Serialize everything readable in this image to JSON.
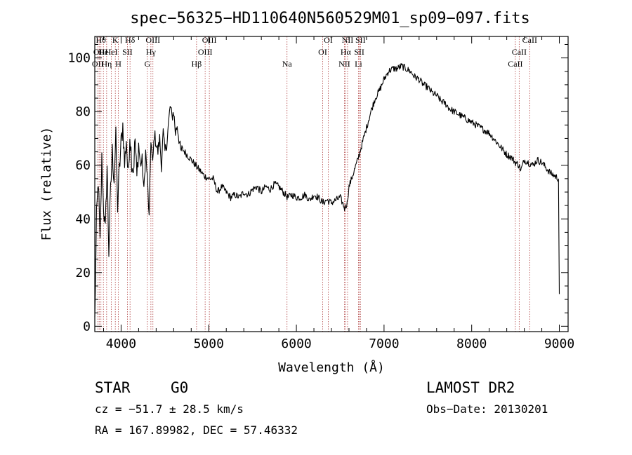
{
  "chart_data": {
    "type": "line",
    "title": "spec−56325−HD110640N560529M01_sp09−097.fits",
    "xlabel": "Wavelength (Å)",
    "ylabel": "Flux (relative)",
    "xlim": [
      3700,
      9100
    ],
    "ylim": [
      -2,
      108
    ],
    "xticks": [
      4000,
      5000,
      6000,
      7000,
      8000,
      9000
    ],
    "yticks": [
      0,
      20,
      40,
      60,
      80,
      100
    ],
    "x_minor_step": 200,
    "y_minor_step": 5,
    "grid": false,
    "line_color": "#000000",
    "marker_color": "#b04040",
    "series": [
      {
        "x": [
          3700,
          3720,
          3740,
          3760,
          3780,
          3800,
          3820,
          3840,
          3860,
          3880,
          3900,
          3920,
          3940,
          3960,
          3980,
          4000,
          4020,
          4040,
          4060,
          4080,
          4100,
          4120,
          4140,
          4160,
          4180,
          4200,
          4220,
          4240,
          4260,
          4280,
          4300,
          4320,
          4340,
          4360,
          4380,
          4400,
          4420,
          4440,
          4460,
          4480,
          4500,
          4520,
          4540,
          4560,
          4580,
          4600,
          4620,
          4640,
          4660,
          4680,
          4700,
          4750,
          4800,
          4850,
          4900,
          4950,
          5000,
          5050,
          5100,
          5150,
          5200,
          5250,
          5300,
          5350,
          5400,
          5450,
          5500,
          5550,
          5600,
          5650,
          5700,
          5750,
          5800,
          5850,
          5900,
          5950,
          6000,
          6050,
          6100,
          6150,
          6200,
          6250,
          6300,
          6350,
          6400,
          6450,
          6500,
          6550,
          6580,
          6600,
          6650,
          6700,
          6750,
          6800,
          6850,
          6900,
          6950,
          7000,
          7050,
          7100,
          7150,
          7200,
          7250,
          7300,
          7350,
          7400,
          7450,
          7500,
          7550,
          7600,
          7650,
          7700,
          7750,
          7800,
          7850,
          7900,
          7950,
          8000,
          8050,
          8100,
          8150,
          8200,
          8250,
          8300,
          8350,
          8400,
          8450,
          8500,
          8540,
          8560,
          8600,
          8650,
          8700,
          8750,
          8800,
          8850,
          8900,
          8950,
          8990,
          9000
        ],
        "y": [
          2,
          40,
          55,
          30,
          62,
          45,
          35,
          60,
          28,
          50,
          65,
          55,
          70,
          45,
          58,
          68,
          75,
          60,
          70,
          55,
          72,
          62,
          58,
          70,
          55,
          68,
          60,
          62,
          50,
          65,
          55,
          40,
          70,
          60,
          72,
          68,
          65,
          70,
          60,
          72,
          65,
          68,
          75,
          82,
          78,
          80,
          72,
          75,
          70,
          65,
          66,
          64,
          62,
          60,
          58,
          56,
          55,
          55,
          50,
          52,
          50,
          48,
          49,
          48,
          50,
          49,
          51,
          52,
          50,
          52,
          51,
          53,
          52,
          50,
          48,
          49,
          48,
          48,
          49,
          47,
          49,
          48,
          46,
          47,
          46,
          47,
          48,
          44,
          46,
          52,
          57,
          62,
          68,
          74,
          80,
          85,
          88,
          92,
          95,
          96,
          96,
          97,
          96,
          95,
          93,
          92,
          90,
          89,
          87,
          86,
          84,
          83,
          81,
          80,
          79,
          78,
          77,
          76,
          75,
          74,
          73,
          72,
          70,
          68,
          66,
          64,
          63,
          61,
          60,
          58,
          62,
          61,
          60,
          62,
          61,
          59,
          57,
          56,
          55,
          12
        ]
      }
    ],
    "line_markers": [
      {
        "x": 3734,
        "label": "OII",
        "row": 2
      },
      {
        "x": 3750,
        "label": "OII",
        "row": 1
      },
      {
        "x": 3770,
        "label": "Hθ",
        "row": 0
      },
      {
        "x": 3798,
        "label": "He",
        "row": 1
      },
      {
        "x": 3835,
        "label": "Hη",
        "row": 2
      },
      {
        "x": 3889,
        "label": "HeI",
        "row": 1
      },
      {
        "x": 3934,
        "label": "K",
        "row": 0
      },
      {
        "x": 3969,
        "label": "H",
        "row": 2
      },
      {
        "x": 4072,
        "label": "SII",
        "row": 1
      },
      {
        "x": 4102,
        "label": "Hδ",
        "row": 0
      },
      {
        "x": 4300,
        "label": "G",
        "row": 2
      },
      {
        "x": 4340,
        "label": "Hγ",
        "row": 1
      },
      {
        "x": 4363,
        "label": "OIII",
        "row": 0
      },
      {
        "x": 4861,
        "label": "Hβ",
        "row": 2
      },
      {
        "x": 4959,
        "label": "OIII",
        "row": 1
      },
      {
        "x": 5007,
        "label": "OIII",
        "row": 0
      },
      {
        "x": 5893,
        "label": "Na",
        "row": 2
      },
      {
        "x": 6300,
        "label": "OI",
        "row": 1
      },
      {
        "x": 6364,
        "label": "OI",
        "row": 0
      },
      {
        "x": 6548,
        "label": "NII",
        "row": 2
      },
      {
        "x": 6563,
        "label": "Hα",
        "row": 1
      },
      {
        "x": 6584,
        "label": "NII",
        "row": 0
      },
      {
        "x": 6708,
        "label": "Li",
        "row": 2
      },
      {
        "x": 6717,
        "label": "SII",
        "row": 1
      },
      {
        "x": 6731,
        "label": "SII",
        "row": 0
      },
      {
        "x": 8498,
        "label": "CaII",
        "row": 2
      },
      {
        "x": 8542,
        "label": "CaII",
        "row": 1
      },
      {
        "x": 8662,
        "label": "CaII",
        "row": 0
      }
    ]
  },
  "info": {
    "object_class": "STAR",
    "subclass": "G0",
    "survey": "LAMOST DR2",
    "redshift_line": "cz = −51.7 ± 28.5 km/s",
    "obs_date": "Obs−Date: 20130201",
    "coords": "RA = 167.89982, DEC =  57.46332"
  }
}
